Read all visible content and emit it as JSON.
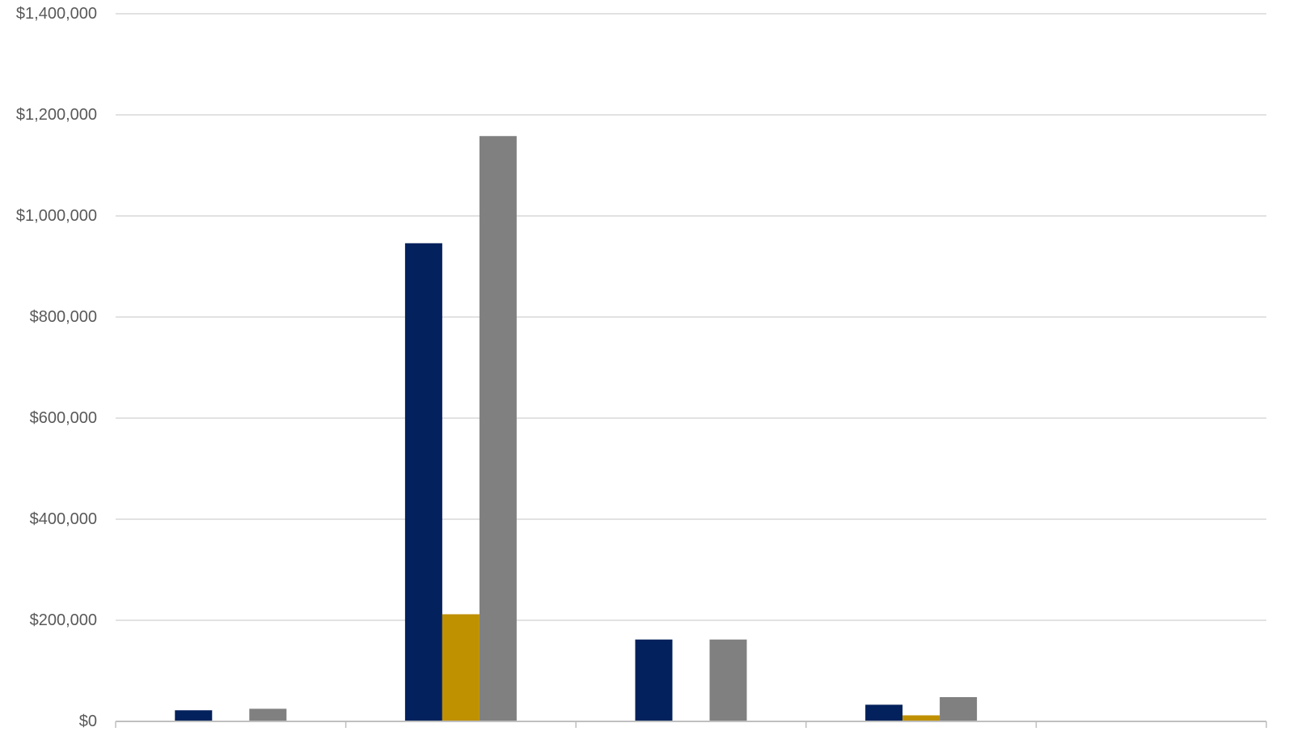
{
  "chart_data": {
    "type": "bar",
    "title": "",
    "xlabel": "",
    "ylabel": "",
    "ylim": [
      0,
      1400000
    ],
    "y_ticks": [
      0,
      200000,
      400000,
      600000,
      800000,
      1000000,
      1200000,
      1400000
    ],
    "y_tick_labels": [
      "$0",
      "$200,000",
      "$400,000",
      "$600,000",
      "$800,000",
      "$1,000,000",
      "$1,200,000",
      "$1,400,000"
    ],
    "category_count": 5,
    "categories": [
      "",
      "",
      "",
      "",
      ""
    ],
    "grid": true,
    "legend": "none",
    "series": [
      {
        "color": "#03215C",
        "values": [
          22000,
          946000,
          162000,
          33000,
          null
        ]
      },
      {
        "color": "#BF9000",
        "values": [
          1500,
          212000,
          0,
          12000,
          null
        ]
      },
      {
        "color": "#808080",
        "values": [
          25000,
          1158000,
          162000,
          48000,
          null
        ]
      }
    ],
    "colors": {
      "grid": "#d9d9d9",
      "axis": "#bfbfbf",
      "tick_text": "#595959"
    }
  }
}
